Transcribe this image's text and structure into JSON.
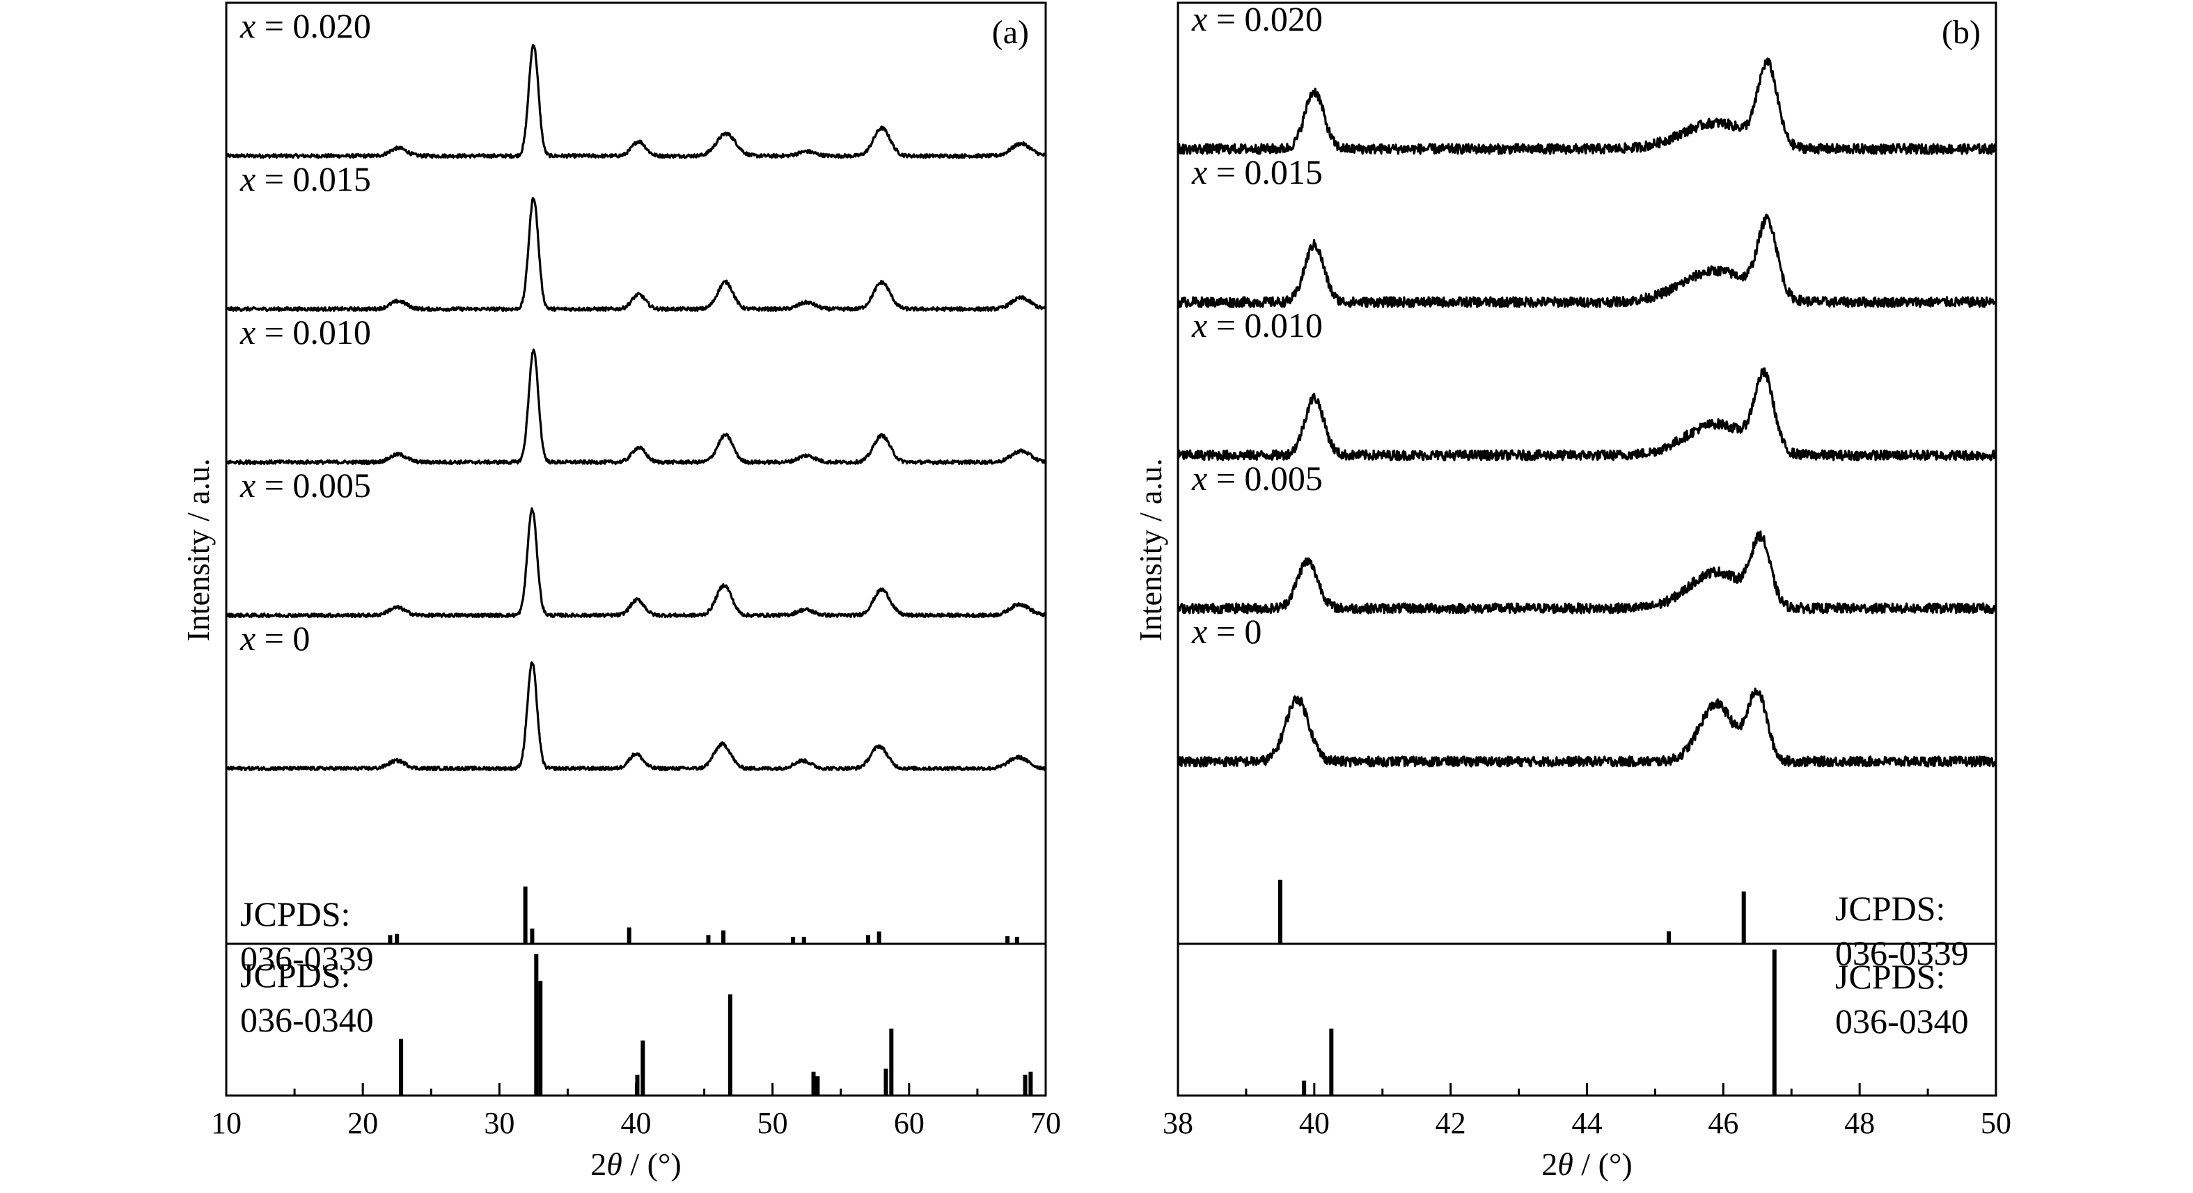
{
  "chart_data": [
    {
      "id": "a",
      "type": "line",
      "panel_label": "(a)",
      "xlabel_prefix": "2",
      "xlabel_theta": "θ",
      "xlabel_suffix": " / (°)",
      "ylabel": "Intensity / a.u.",
      "xlim": [
        10,
        70
      ],
      "xticks": [
        10,
        20,
        30,
        40,
        50,
        60,
        70
      ],
      "traces": [
        {
          "label": "x = 0.020",
          "peaks": [
            [
              22.6,
              0.07,
              0.6
            ],
            [
              32.5,
              1.0,
              0.35
            ],
            [
              40.2,
              0.13,
              0.5
            ],
            [
              46.6,
              0.2,
              0.7
            ],
            [
              52.5,
              0.04,
              0.6
            ],
            [
              58.0,
              0.25,
              0.6
            ],
            [
              68.2,
              0.11,
              0.7
            ]
          ]
        },
        {
          "label": "x = 0.015",
          "peaks": [
            [
              22.6,
              0.07,
              0.6
            ],
            [
              32.5,
              1.0,
              0.35
            ],
            [
              40.2,
              0.13,
              0.5
            ],
            [
              46.2,
              0.09,
              0.5
            ],
            [
              46.7,
              0.18,
              0.5
            ],
            [
              52.5,
              0.06,
              0.6
            ],
            [
              58.0,
              0.24,
              0.6
            ],
            [
              68.2,
              0.1,
              0.7
            ]
          ]
        },
        {
          "label": "x = 0.010",
          "peaks": [
            [
              22.6,
              0.07,
              0.6
            ],
            [
              32.5,
              1.0,
              0.35
            ],
            [
              40.2,
              0.13,
              0.5
            ],
            [
              46.2,
              0.09,
              0.5
            ],
            [
              46.7,
              0.18,
              0.5
            ],
            [
              52.5,
              0.06,
              0.6
            ],
            [
              58.0,
              0.24,
              0.6
            ],
            [
              68.2,
              0.1,
              0.7
            ]
          ]
        },
        {
          "label": "x = 0.005",
          "peaks": [
            [
              22.5,
              0.07,
              0.6
            ],
            [
              32.4,
              0.95,
              0.35
            ],
            [
              40.1,
              0.14,
              0.5
            ],
            [
              46.1,
              0.1,
              0.5
            ],
            [
              46.6,
              0.2,
              0.5
            ],
            [
              52.4,
              0.05,
              0.6
            ],
            [
              58.0,
              0.23,
              0.6
            ],
            [
              68.1,
              0.1,
              0.7
            ]
          ]
        },
        {
          "label": "x = 0",
          "peaks": [
            [
              22.5,
              0.07,
              0.6
            ],
            [
              32.4,
              0.95,
              0.35
            ],
            [
              40.0,
              0.13,
              0.5
            ],
            [
              46.0,
              0.12,
              0.5
            ],
            [
              46.6,
              0.14,
              0.5
            ],
            [
              52.2,
              0.07,
              0.6
            ],
            [
              57.8,
              0.2,
              0.6
            ],
            [
              68.0,
              0.1,
              0.7
            ]
          ]
        }
      ],
      "references": [
        {
          "name_line1": "JCPDS:",
          "name_line2": "036-0339",
          "sticks": [
            [
              22.0,
              0.15
            ],
            [
              22.5,
              0.17
            ],
            [
              31.9,
              0.98
            ],
            [
              32.4,
              0.26
            ],
            [
              39.5,
              0.28
            ],
            [
              45.3,
              0.15
            ],
            [
              46.4,
              0.23
            ],
            [
              51.5,
              0.12
            ],
            [
              52.3,
              0.12
            ],
            [
              57.0,
              0.15
            ],
            [
              57.8,
              0.21
            ],
            [
              67.2,
              0.13
            ],
            [
              67.9,
              0.12
            ]
          ]
        },
        {
          "name_line1": "JCPDS:",
          "name_line2": "036-0340",
          "sticks": [
            [
              22.8,
              0.38
            ],
            [
              32.7,
              0.95
            ],
            [
              33.0,
              0.77
            ],
            [
              40.1,
              0.14
            ],
            [
              40.5,
              0.37
            ],
            [
              46.9,
              0.68
            ],
            [
              53.0,
              0.16
            ],
            [
              53.3,
              0.13
            ],
            [
              58.3,
              0.18
            ],
            [
              58.7,
              0.45
            ],
            [
              68.5,
              0.14
            ],
            [
              68.9,
              0.16
            ]
          ]
        }
      ]
    },
    {
      "id": "b",
      "type": "line",
      "panel_label": "(b)",
      "xlabel_prefix": "2",
      "xlabel_theta": "θ",
      "xlabel_suffix": " / (°)",
      "ylabel": "Intensity / a.u.",
      "xlim": [
        38,
        50
      ],
      "xticks": [
        38,
        40,
        42,
        44,
        46,
        48,
        50
      ],
      "traces": [
        {
          "label": "x = 0.020",
          "peaks": [
            [
              40.0,
              0.55,
              0.14
            ],
            [
              45.9,
              0.25,
              0.5
            ],
            [
              46.65,
              0.75,
              0.14
            ]
          ]
        },
        {
          "label": "x = 0.015",
          "peaks": [
            [
              40.0,
              0.55,
              0.14
            ],
            [
              45.9,
              0.3,
              0.5
            ],
            [
              46.65,
              0.7,
              0.14
            ]
          ]
        },
        {
          "label": "x = 0.010",
          "peaks": [
            [
              40.0,
              0.55,
              0.14
            ],
            [
              45.9,
              0.3,
              0.45
            ],
            [
              46.6,
              0.7,
              0.14
            ]
          ]
        },
        {
          "label": "x = 0.005",
          "peaks": [
            [
              39.9,
              0.45,
              0.15
            ],
            [
              45.9,
              0.35,
              0.4
            ],
            [
              46.55,
              0.6,
              0.14
            ]
          ]
        },
        {
          "label": "x = 0",
          "peaks": [
            [
              39.75,
              0.6,
              0.17
            ],
            [
              45.9,
              0.55,
              0.25
            ],
            [
              46.5,
              0.65,
              0.14
            ]
          ]
        }
      ],
      "references": [
        {
          "name_line1": "JCPDS:",
          "name_line2": "036-0339",
          "sticks": [
            [
              39.5,
              0.98
            ],
            [
              45.2,
              0.19
            ],
            [
              46.3,
              0.8
            ]
          ]
        },
        {
          "name_line1": "JCPDS:",
          "name_line2": "036-0340",
          "sticks": [
            [
              39.85,
              0.1
            ],
            [
              40.25,
              0.45
            ],
            [
              46.75,
              0.98
            ]
          ]
        }
      ]
    }
  ]
}
